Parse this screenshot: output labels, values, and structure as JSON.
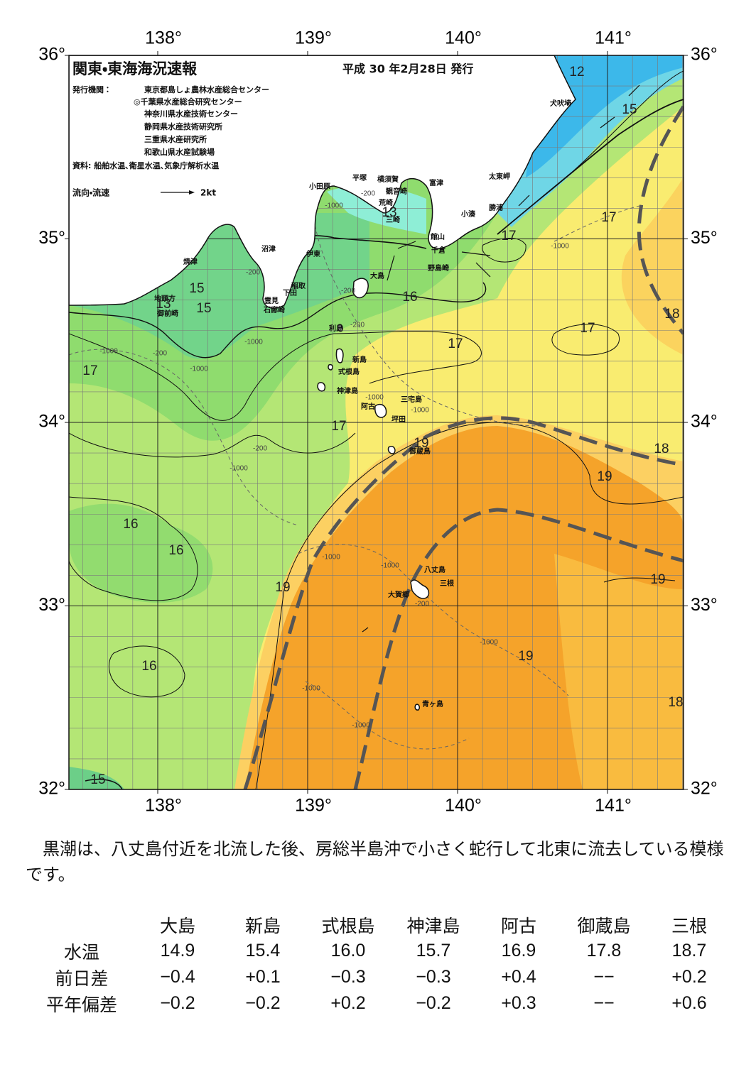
{
  "map": {
    "title": "関東・東海海況速報",
    "issued": "平成 30 年2月28日 発行",
    "publisher_label": "発行機関：",
    "publishers": [
      "東京都島しょ農林水産総合センター",
      "◎千葉県水産総合研究センター",
      "神奈川県水産技術センター",
      "静岡県水産技術研究所",
      "三重県水産研究所",
      "和歌山県水産試験場"
    ],
    "source": "資料: 船舶水温､衛星水温､気象庁解析水温",
    "legend_label": "流向・流速",
    "legend_speed": "2kt",
    "lon_ticks": [
      {
        "value": 138,
        "label": "138°"
      },
      {
        "value": 139,
        "label": "139°"
      },
      {
        "value": 140,
        "label": "140°"
      },
      {
        "value": 141,
        "label": "141°"
      }
    ],
    "lat_ticks": [
      {
        "value": 36,
        "label": "36°"
      },
      {
        "value": 35,
        "label": "35°"
      },
      {
        "value": 34,
        "label": "34°"
      },
      {
        "value": 33,
        "label": "33°"
      },
      {
        "value": 32,
        "label": "32°"
      }
    ],
    "place_names": [
      "小田原",
      "平塚",
      "横須賀",
      "観音崎",
      "富津",
      "荒崎",
      "三崎",
      "館山",
      "千倉",
      "野島崎",
      "小湊",
      "勝浦",
      "太東岬",
      "犬吠埼",
      "沼津",
      "伊東",
      "焼津",
      "稲取",
      "下田",
      "雲見",
      "石廊崎",
      "大島",
      "利島",
      "新島",
      "式根島",
      "神津島",
      "三宅島",
      "阿古",
      "坪田",
      "御蔵島",
      "八丈島",
      "三根",
      "大賀郷",
      "青ヶ島",
      "地頭方",
      "御前崎"
    ],
    "isotherm_labels": [
      12,
      15,
      13,
      17,
      17,
      15,
      15,
      13,
      16,
      18,
      17,
      17,
      17,
      17,
      19,
      18,
      19,
      16,
      16,
      19,
      19,
      19,
      16,
      18,
      15
    ],
    "depth_labels": [
      -1000,
      -200,
      -1000,
      -200,
      -200,
      -200,
      -1000,
      -200,
      -1000,
      -1000,
      -1000,
      -1000,
      -200,
      -1000,
      -1000,
      -1000,
      -200,
      -1000,
      -1000,
      -1000
    ]
  },
  "summary": "黒潮は、八丈島付近を北流した後、房総半島沖で小さく蛇行して北東に流去している模様です。",
  "table": {
    "columns": [
      "大島",
      "新島",
      "式根島",
      "神津島",
      "阿古",
      "御蔵島",
      "三根"
    ],
    "rows": [
      {
        "label": "水温",
        "cells": [
          "14.9",
          "15.4",
          "16.0",
          "15.7",
          "16.9",
          "17.8",
          "18.7"
        ]
      },
      {
        "label": "前日差",
        "cells": [
          "−0.4",
          "+0.1",
          "−0.3",
          "−0.3",
          "+0.4",
          "−−",
          "+0.2"
        ]
      },
      {
        "label": "平年偏差",
        "cells": [
          "−0.2",
          "−0.2",
          "+0.2",
          "−0.2",
          "+0.3",
          "−−",
          "+0.6"
        ]
      }
    ]
  }
}
